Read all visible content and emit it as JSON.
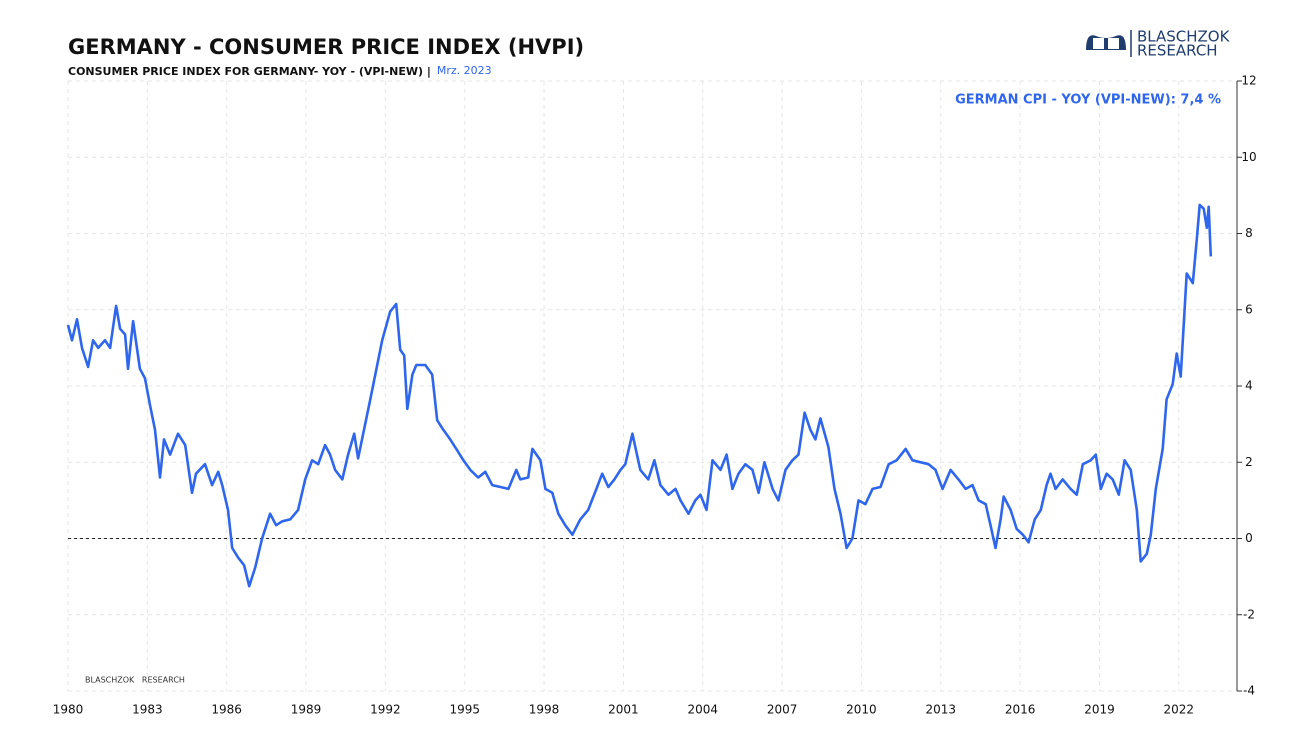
{
  "chart_data": {
    "type": "line",
    "title": "GERMANY - CONSUMER PRICE INDEX (HVPI)",
    "subtitle": "CONSUMER PRICE INDEX FOR GERMANY- YOY - (VPI-NEW) |",
    "date_label": "Mrz. 2023",
    "logo": [
      "BLASCHZOK",
      "RESEARCH"
    ],
    "watermark": "BLASCHZOK   RESEARCH",
    "x": [
      1980.0,
      1980.15,
      1980.34,
      1980.53,
      1980.76,
      1980.95,
      1981.14,
      1981.4,
      1981.59,
      1981.82,
      1981.97,
      1982.16,
      1982.27,
      1982.46,
      1982.72,
      1982.91,
      1983.1,
      1983.29,
      1983.48,
      1983.63,
      1983.86,
      1984.16,
      1984.43,
      1984.69,
      1984.84,
      1985.18,
      1985.45,
      1985.68,
      1985.83,
      1986.05,
      1986.21,
      1986.43,
      1986.66,
      1986.85,
      1987.08,
      1987.34,
      1987.64,
      1987.87,
      1988.1,
      1988.4,
      1988.7,
      1988.97,
      1989.23,
      1989.46,
      1989.72,
      1989.91,
      1990.1,
      1990.37,
      1990.59,
      1990.82,
      1990.97,
      1991.43,
      1991.88,
      1992.18,
      1992.41,
      1992.56,
      1992.71,
      1992.83,
      1993.02,
      1993.17,
      1993.51,
      1993.77,
      1993.96,
      1994.19,
      1994.45,
      1994.68,
      1994.95,
      1995.21,
      1995.51,
      1995.78,
      1996.04,
      1996.35,
      1996.65,
      1996.95,
      1997.1,
      1997.4,
      1997.56,
      1997.86,
      1998.05,
      1998.31,
      1998.54,
      1998.8,
      1999.07,
      1999.37,
      1999.67,
      1999.98,
      2000.2,
      2000.43,
      2000.66,
      2000.89,
      2001.07,
      2001.34,
      2001.64,
      2001.94,
      2002.17,
      2002.4,
      2002.7,
      2002.97,
      2003.16,
      2003.46,
      2003.72,
      2003.91,
      2004.14,
      2004.37,
      2004.67,
      2004.9,
      2005.12,
      2005.35,
      2005.61,
      2005.88,
      2006.11,
      2006.33,
      2006.64,
      2006.86,
      2007.13,
      2007.39,
      2007.62,
      2007.85,
      2008.07,
      2008.26,
      2008.45,
      2008.75,
      2008.98,
      2009.21,
      2009.44,
      2009.66,
      2009.89,
      2010.15,
      2010.42,
      2010.72,
      2011.03,
      2011.33,
      2011.67,
      2011.93,
      2012.24,
      2012.54,
      2012.8,
      2013.07,
      2013.37,
      2013.67,
      2013.94,
      2014.2,
      2014.43,
      2014.7,
      2014.88,
      2015.07,
      2015.26,
      2015.38,
      2015.64,
      2015.87,
      2016.1,
      2016.32,
      2016.55,
      2016.78,
      2017.0,
      2017.15,
      2017.34,
      2017.61,
      2017.91,
      2018.14,
      2018.37,
      2018.67,
      2018.86,
      2019.05,
      2019.27,
      2019.5,
      2019.73,
      2019.95,
      2020.18,
      2020.41,
      2020.56,
      2020.79,
      2020.94,
      2021.13,
      2021.39,
      2021.54,
      2021.77,
      2021.92,
      2022.07,
      2022.3,
      2022.53,
      2022.68,
      2022.79,
      2022.94,
      2023.06,
      2023.13,
      2023.21
    ],
    "series": [
      {
        "name": "GERMAN CPI - YOY (VPI-NEW): 7,4 %",
        "color": "#2f66ee",
        "values": [
          5.6,
          5.2,
          5.75,
          5.0,
          4.5,
          5.2,
          5.0,
          5.2,
          5.0,
          6.1,
          5.5,
          5.35,
          4.45,
          5.7,
          4.45,
          4.2,
          3.5,
          2.85,
          1.6,
          2.6,
          2.2,
          2.75,
          2.45,
          1.2,
          1.7,
          1.95,
          1.4,
          1.75,
          1.4,
          0.75,
          -0.25,
          -0.5,
          -0.7,
          -1.25,
          -0.75,
          0,
          0.65,
          0.35,
          0.45,
          0.5,
          0.75,
          1.55,
          2.05,
          1.95,
          2.45,
          2.2,
          1.8,
          1.55,
          2.2,
          2.75,
          2.1,
          3.65,
          5.2,
          5.95,
          6.15,
          4.95,
          4.8,
          3.4,
          4.3,
          4.55,
          4.55,
          4.3,
          3.1,
          2.85,
          2.6,
          2.35,
          2.05,
          1.8,
          1.6,
          1.75,
          1.4,
          1.35,
          1.3,
          1.8,
          1.55,
          1.6,
          2.35,
          2.05,
          1.3,
          1.2,
          0.65,
          0.35,
          0.1,
          0.5,
          0.75,
          1.3,
          1.7,
          1.35,
          1.55,
          1.8,
          1.95,
          2.75,
          1.8,
          1.55,
          2.05,
          1.4,
          1.15,
          1.3,
          1.0,
          0.65,
          1.0,
          1.15,
          0.75,
          2.05,
          1.8,
          2.2,
          1.3,
          1.7,
          1.95,
          1.8,
          1.2,
          2.0,
          1.3,
          1.0,
          1.8,
          2.05,
          2.2,
          3.3,
          2.85,
          2.6,
          3.15,
          2.4,
          1.3,
          0.65,
          -0.25,
          0,
          1.0,
          0.9,
          1.3,
          1.35,
          1.95,
          2.05,
          2.35,
          2.05,
          2.0,
          1.95,
          1.8,
          1.3,
          1.8,
          1.55,
          1.3,
          1.4,
          1.0,
          0.9,
          0.35,
          -0.25,
          0.5,
          1.1,
          0.75,
          0.25,
          0.1,
          -0.1,
          0.5,
          0.75,
          1.4,
          1.7,
          1.3,
          1.55,
          1.3,
          1.15,
          1.95,
          2.05,
          2.2,
          1.3,
          1.7,
          1.55,
          1.15,
          2.05,
          1.8,
          0.75,
          -0.6,
          -0.4,
          0.1,
          1.3,
          2.35,
          3.65,
          4.05,
          4.85,
          4.25,
          6.95,
          6.7,
          7.85,
          8.75,
          8.65,
          8.15,
          8.7,
          7.4
        ]
      }
    ],
    "xlim": [
      1980,
      2024.2
    ],
    "xticks": [
      1980,
      1983,
      1986,
      1989,
      1992,
      1995,
      1998,
      2001,
      2004,
      2007,
      2010,
      2013,
      2016,
      2019,
      2022
    ],
    "ylim": [
      -4,
      12
    ],
    "yticks": [
      -4,
      -2,
      0,
      2,
      4,
      6,
      8,
      10,
      12
    ],
    "zero_line": 0,
    "grid": true,
    "legend": "top-right"
  }
}
